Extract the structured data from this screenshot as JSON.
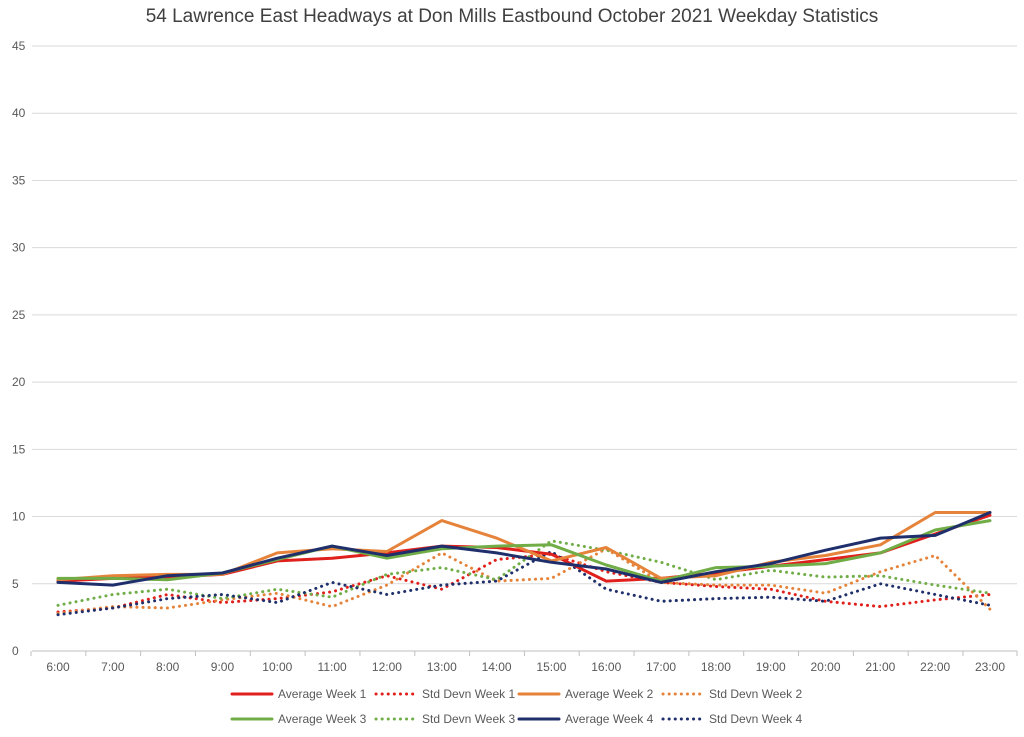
{
  "chart_data": {
    "type": "line",
    "title": "54 Lawrence East Headways at Don Mills Eastbound October 2021 Weekday Statistics",
    "xlabel": "",
    "ylabel": "",
    "ylim": [
      0,
      45
    ],
    "yticks": [
      0,
      5,
      10,
      15,
      20,
      25,
      30,
      35,
      40,
      45
    ],
    "grid": true,
    "legend_position": "bottom",
    "categories": [
      "6:00",
      "7:00",
      "8:00",
      "9:00",
      "10:00",
      "11:00",
      "12:00",
      "13:00",
      "14:00",
      "15:00",
      "16:00",
      "17:00",
      "18:00",
      "19:00",
      "20:00",
      "21:00",
      "22:00",
      "23:00"
    ],
    "series": [
      {
        "name": "Average Week 1",
        "color": "#e0201c",
        "style": "solid",
        "values": [
          5.2,
          5.4,
          5.5,
          5.7,
          6.7,
          6.9,
          7.3,
          7.8,
          7.7,
          7.2,
          5.2,
          5.4,
          5.8,
          6.3,
          6.8,
          7.3,
          8.7,
          10.1
        ]
      },
      {
        "name": "Std Devn Week 1",
        "color": "#e0201c",
        "style": "dotted",
        "values": [
          2.9,
          3.2,
          4.2,
          3.6,
          3.9,
          4.4,
          5.6,
          4.6,
          6.8,
          7.2,
          5.9,
          5.1,
          4.8,
          4.6,
          3.7,
          3.3,
          3.8,
          4.2
        ]
      },
      {
        "name": "Average Week 2",
        "color": "#e6833a",
        "style": "solid",
        "values": [
          5.3,
          5.6,
          5.7,
          5.7,
          7.3,
          7.6,
          7.4,
          9.7,
          8.4,
          6.7,
          7.7,
          5.4,
          5.6,
          6.6,
          7.1,
          7.9,
          10.3,
          10.3
        ]
      },
      {
        "name": "Std Devn Week 2",
        "color": "#e6833a",
        "style": "dotted",
        "values": [
          2.8,
          3.3,
          3.2,
          3.8,
          4.3,
          3.3,
          4.9,
          7.3,
          5.2,
          5.4,
          7.6,
          5.1,
          4.9,
          4.9,
          4.3,
          5.9,
          7.1,
          3.1
        ]
      },
      {
        "name": "Average Week 3",
        "color": "#70ad47",
        "style": "solid",
        "values": [
          5.4,
          5.4,
          5.3,
          5.8,
          6.8,
          7.8,
          6.9,
          7.6,
          7.8,
          7.9,
          6.4,
          5.2,
          6.2,
          6.3,
          6.5,
          7.3,
          9.0,
          9.7
        ]
      },
      {
        "name": "Std Devn Week 3",
        "color": "#70ad47",
        "style": "dotted",
        "values": [
          3.4,
          4.2,
          4.6,
          3.9,
          4.6,
          4.0,
          5.7,
          6.2,
          5.3,
          8.2,
          7.5,
          6.6,
          5.3,
          6.0,
          5.5,
          5.6,
          4.9,
          4.3
        ]
      },
      {
        "name": "Average Week 4",
        "color": "#1f2f6b",
        "style": "solid",
        "values": [
          5.1,
          4.9,
          5.6,
          5.8,
          6.9,
          7.8,
          7.1,
          7.8,
          7.3,
          6.6,
          6.1,
          5.1,
          5.9,
          6.5,
          7.5,
          8.4,
          8.6,
          10.3
        ]
      },
      {
        "name": "Std Devn Week 4",
        "color": "#1f2f6b",
        "style": "dotted",
        "values": [
          2.7,
          3.2,
          3.9,
          4.2,
          3.6,
          5.1,
          4.2,
          4.9,
          5.2,
          7.4,
          4.6,
          3.7,
          3.9,
          4.0,
          3.7,
          5.0,
          4.2,
          3.4
        ]
      }
    ]
  }
}
